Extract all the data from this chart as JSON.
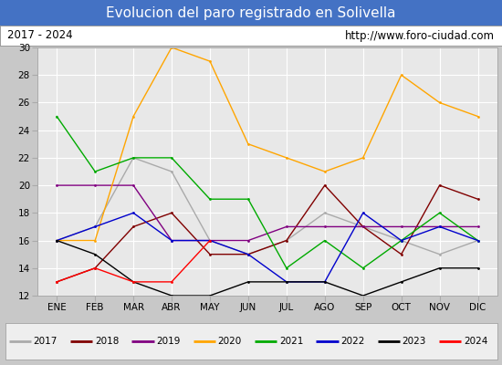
{
  "title": "Evolucion del paro registrado en Solivella",
  "subtitle_left": "2017 - 2024",
  "subtitle_right": "http://www.foro-ciudad.com",
  "xlabel_months": [
    "ENE",
    "FEB",
    "MAR",
    "ABR",
    "MAY",
    "JUN",
    "JUL",
    "AGO",
    "SEP",
    "OCT",
    "NOV",
    "DIC"
  ],
  "ylim": [
    12,
    30
  ],
  "yticks": [
    12,
    14,
    16,
    18,
    20,
    22,
    24,
    26,
    28,
    30
  ],
  "series": {
    "2017": {
      "color": "#aaaaaa",
      "data": [
        16,
        17,
        22,
        21,
        16,
        15,
        16,
        18,
        17,
        16,
        15,
        16
      ],
      "months": [
        0,
        1,
        2,
        3,
        4,
        5,
        6,
        7,
        8,
        9,
        10,
        11
      ]
    },
    "2018": {
      "color": "#800000",
      "data": [
        13,
        14,
        17,
        18,
        15,
        15,
        16,
        20,
        17,
        15,
        20,
        19
      ],
      "months": [
        0,
        1,
        2,
        3,
        4,
        5,
        6,
        7,
        8,
        9,
        10,
        11
      ]
    },
    "2019": {
      "color": "#800080",
      "data": [
        20,
        20,
        20,
        16,
        16,
        16,
        17,
        17,
        17,
        17,
        17,
        17
      ],
      "months": [
        0,
        1,
        2,
        3,
        4,
        5,
        6,
        7,
        8,
        9,
        10,
        11
      ]
    },
    "2020": {
      "color": "#ffa500",
      "data": [
        16,
        16,
        25,
        30,
        29,
        23,
        22,
        21,
        22,
        28,
        26,
        25
      ],
      "months": [
        0,
        1,
        2,
        3,
        4,
        5,
        6,
        7,
        8,
        9,
        10,
        11
      ]
    },
    "2021": {
      "color": "#00aa00",
      "data": [
        25,
        21,
        22,
        22,
        19,
        19,
        14,
        16,
        14,
        16,
        18,
        16
      ],
      "months": [
        0,
        1,
        2,
        3,
        4,
        5,
        6,
        7,
        8,
        9,
        10,
        11
      ]
    },
    "2022": {
      "color": "#0000cc",
      "data": [
        16,
        17,
        18,
        16,
        16,
        15,
        13,
        13,
        18,
        16,
        17,
        16
      ],
      "months": [
        0,
        1,
        2,
        3,
        4,
        5,
        6,
        7,
        8,
        9,
        10,
        11
      ]
    },
    "2023": {
      "color": "#000000",
      "data": [
        16,
        15,
        13,
        12,
        12,
        13,
        13,
        13,
        12,
        13,
        14,
        14
      ],
      "months": [
        0,
        1,
        2,
        3,
        4,
        5,
        6,
        7,
        8,
        9,
        10,
        11
      ]
    },
    "2024": {
      "color": "#ff0000",
      "data": [
        13,
        14,
        13,
        13,
        16
      ],
      "months": [
        0,
        1,
        2,
        3,
        4
      ]
    }
  },
  "title_bg_color": "#4472c4",
  "title_font_color": "#ffffff",
  "subtitle_bg_color": "#ffffff",
  "plot_bg_color": "#e8e8e8",
  "grid_color": "#ffffff",
  "legend_bg_color": "#eeeeee",
  "fig_bg_color": "#c8c8c8"
}
